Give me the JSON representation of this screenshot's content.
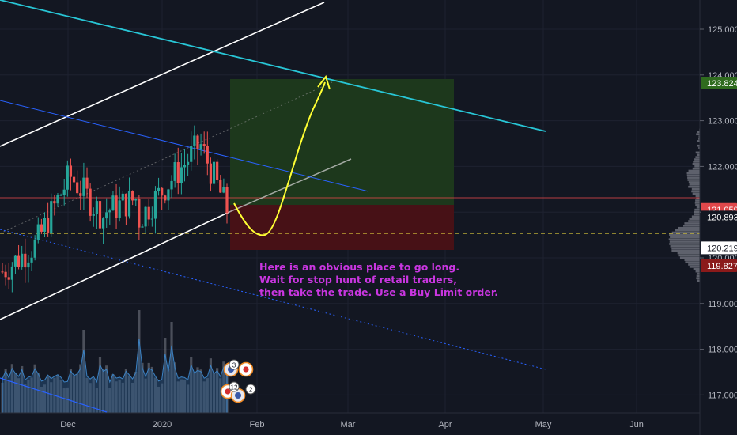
{
  "chart": {
    "price_axis": {
      "ticks": [
        "125.000",
        "124.000",
        "123.000",
        "122.000",
        "121.000",
        "120.000",
        "119.000",
        "118.000",
        "117.000"
      ],
      "price_range": [
        116.2,
        125.55
      ]
    },
    "time_axis": {
      "labels": [
        "Dec",
        "2020",
        "Feb",
        "Mar",
        "Apr",
        "May",
        "Jun"
      ]
    },
    "price_labels": [
      {
        "name": "target-price-label",
        "value": "123.824",
        "color": "#2f6b1e",
        "text_color": "#ffffff"
      },
      {
        "name": "last-price-label",
        "value": "121.059",
        "color": "#e0484b",
        "text_color": "#ffffff"
      },
      {
        "name": "current-price-label",
        "value": "120.893",
        "color": "#131722",
        "text_color": "#ffffff"
      },
      {
        "name": "entry-price-label",
        "value": "120.219",
        "color": "#ffffff",
        "text_color": "#131722"
      },
      {
        "name": "stop-price-label",
        "value": "119.827",
        "color": "#8b1a1a",
        "text_color": "#ffffff"
      }
    ],
    "levels": {
      "target": 123.824,
      "entry": 121.059,
      "stop": 119.827,
      "buy_limit": 120.219
    },
    "annotation_lines": [
      "Here is an obvious place to go long.",
      "Wait for stop hunt of retail traders,",
      "then take the trade. Use a Buy Limit order."
    ],
    "event_badges": [
      "3",
      "12",
      "2"
    ],
    "colors": {
      "background": "#131722",
      "up_candle": "#26a69a",
      "down_candle": "#ef5350",
      "channel_white": "#ffffff",
      "cyan_line": "#28c6d6",
      "blue_line": "#2962ff",
      "yellow_curve": "#ffff33",
      "annotation_text": "#c936e0",
      "profit_zone": "#1d3a1c",
      "loss_zone": "#4a1116"
    }
  }
}
